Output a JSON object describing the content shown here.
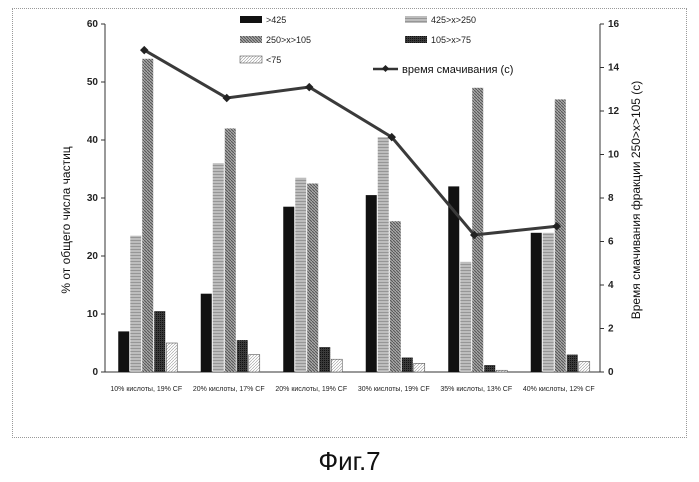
{
  "figure_caption": "Фиг.7",
  "colors": {
    "s1": "#111111",
    "s2": "#9a9a9a",
    "s3": "#8a8a8a",
    "s4": "#2a2a2a",
    "s5": "#ffffff",
    "line": "#444444"
  },
  "chart_data": {
    "type": "bar",
    "categories": [
      "10% кислоты, 19% CF",
      "20% кислоты, 17% CF",
      "20% кислоты, 19% CF",
      "30% кислоты, 19% CF",
      "35% кислоты, 13% CF",
      "40% кислоты, 12% CF"
    ],
    "series": [
      {
        "name": ">425",
        "values": [
          7,
          13.5,
          28.5,
          30.5,
          32,
          24
        ]
      },
      {
        "name": "425>x>250",
        "values": [
          23.5,
          36,
          33.5,
          40.5,
          19,
          24
        ]
      },
      {
        "name": "250>x>105",
        "values": [
          54,
          42,
          32.5,
          26,
          49,
          47
        ]
      },
      {
        "name": "105>x>75",
        "values": [
          10.5,
          5.5,
          4.3,
          2.5,
          1.2,
          3
        ]
      },
      {
        "name": "<75",
        "values": [
          5,
          3,
          2.2,
          1.5,
          0.3,
          1.8
        ]
      }
    ],
    "line_series": {
      "name": "время смачивания (с)",
      "values": [
        14.8,
        12.6,
        13.1,
        10.8,
        6.3,
        6.7
      ]
    },
    "ylabel": "% от общего числа частиц",
    "y2label": "Время смачивания фракции 250>x>105 (с)",
    "ylim": [
      0,
      60
    ],
    "y2lim": [
      0,
      16
    ],
    "yticks": [
      0,
      10,
      20,
      30,
      40,
      50,
      60
    ],
    "y2ticks": [
      0,
      2,
      4,
      6,
      8,
      10,
      12,
      14,
      16
    ],
    "legend_position": "top"
  }
}
